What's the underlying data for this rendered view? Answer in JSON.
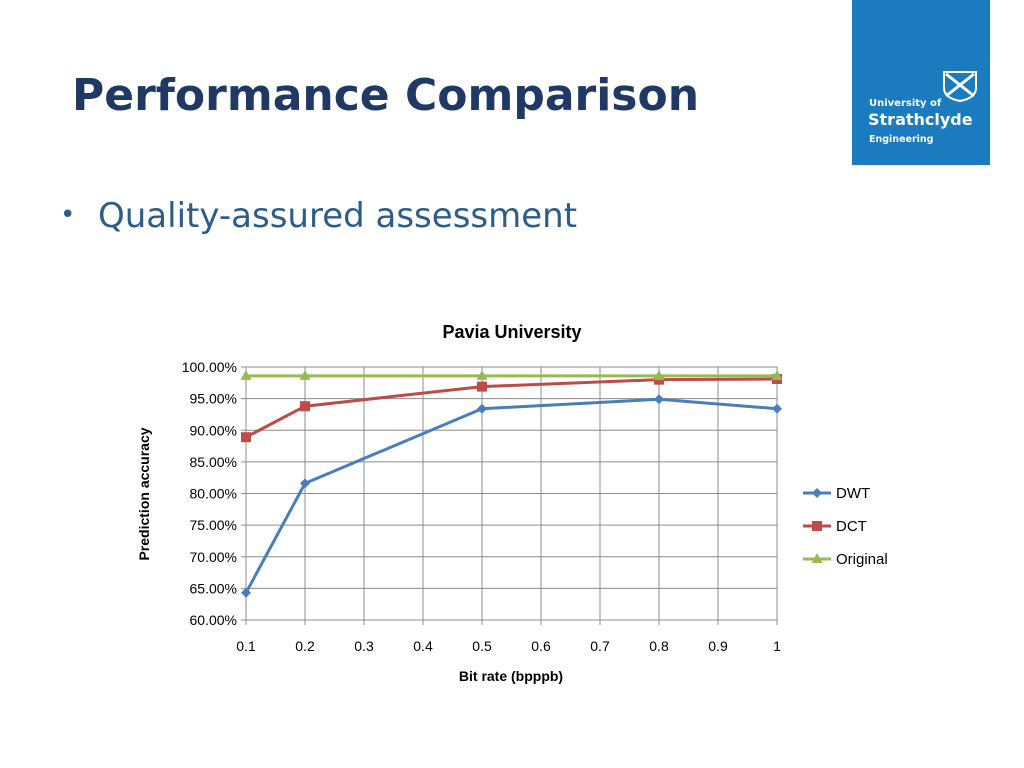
{
  "slide": {
    "title": "Performance Comparison",
    "bullet": "Quality-assured assessment"
  },
  "logo": {
    "line1": "University of",
    "line2": "Strathclyde",
    "line3": "Engineering",
    "background": "#1a7bbf"
  },
  "chart_data": {
    "type": "line",
    "title": "Pavia University",
    "xlabel": "Bit rate (bpppb)",
    "ylabel": "Prediction accuracy",
    "xlim": [
      0.1,
      1
    ],
    "ylim": [
      60,
      100
    ],
    "x_ticks": [
      0.1,
      0.2,
      0.3,
      0.4,
      0.5,
      0.6,
      0.7,
      0.8,
      0.9,
      1
    ],
    "x_tick_labels": [
      "0.1",
      "0.2",
      "0.3",
      "0.4",
      "0.5",
      "0.6",
      "0.7",
      "0.8",
      "0.9",
      "1"
    ],
    "y_ticks": [
      60,
      65,
      70,
      75,
      80,
      85,
      90,
      95,
      100
    ],
    "y_tick_labels": [
      "60.00%",
      "65.00%",
      "70.00%",
      "75.00%",
      "80.00%",
      "85.00%",
      "90.00%",
      "95.00%",
      "100.00%"
    ],
    "grid": true,
    "legend_position": "right",
    "series": [
      {
        "name": "DWT",
        "marker": "diamond",
        "color": "#4a7ebb",
        "x": [
          0.1,
          0.2,
          0.5,
          0.8,
          1
        ],
        "y": [
          64.3,
          81.6,
          93.4,
          94.9,
          93.4
        ]
      },
      {
        "name": "DCT",
        "marker": "square",
        "color": "#be4b48",
        "x": [
          0.1,
          0.2,
          0.5,
          0.8,
          1
        ],
        "y": [
          88.9,
          93.8,
          96.9,
          98.0,
          98.1
        ]
      },
      {
        "name": "Original",
        "marker": "triangle",
        "color": "#98b954",
        "x": [
          0.1,
          0.2,
          0.5,
          0.8,
          1
        ],
        "y": [
          98.6,
          98.6,
          98.6,
          98.6,
          98.6
        ]
      }
    ]
  }
}
